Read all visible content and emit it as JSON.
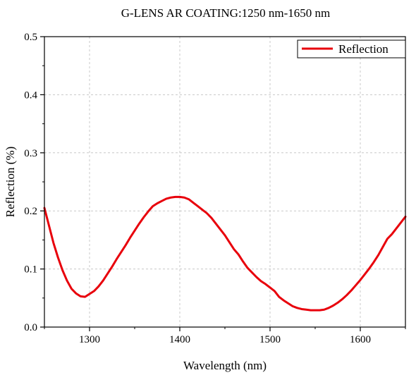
{
  "chart_data": {
    "type": "line",
    "title": "G-LENS AR COATING:1250 nm-1650 nm",
    "xlabel": "Wavelength (nm)",
    "ylabel": "Reflection (%)",
    "xlim": [
      1250,
      1650
    ],
    "ylim": [
      0.0,
      0.5
    ],
    "xticks": [
      1300,
      1400,
      1500,
      1600
    ],
    "xtick_labels": [
      "1300",
      "1400",
      "1500",
      "1600"
    ],
    "yticks": [
      0.0,
      0.1,
      0.2,
      0.3,
      0.4,
      0.5
    ],
    "ytick_labels": [
      "0.0",
      "0.1",
      "0.2",
      "0.3",
      "0.4",
      "0.5"
    ],
    "grid": true,
    "legend_position": "top-right",
    "series": [
      {
        "name": "Reflection",
        "color": "#e8000b",
        "x": [
          1250,
          1255,
          1260,
          1265,
          1270,
          1275,
          1280,
          1285,
          1290,
          1295,
          1300,
          1305,
          1310,
          1315,
          1320,
          1325,
          1330,
          1335,
          1340,
          1345,
          1350,
          1355,
          1360,
          1365,
          1370,
          1375,
          1380,
          1385,
          1390,
          1395,
          1400,
          1405,
          1410,
          1415,
          1420,
          1425,
          1430,
          1435,
          1440,
          1445,
          1450,
          1455,
          1460,
          1465,
          1470,
          1475,
          1480,
          1485,
          1490,
          1495,
          1500,
          1505,
          1510,
          1515,
          1520,
          1525,
          1530,
          1535,
          1540,
          1545,
          1550,
          1555,
          1560,
          1565,
          1570,
          1575,
          1580,
          1585,
          1590,
          1595,
          1600,
          1605,
          1610,
          1615,
          1620,
          1625,
          1630,
          1635,
          1640,
          1645,
          1650
        ],
        "y": [
          0.205,
          0.175,
          0.145,
          0.12,
          0.098,
          0.08,
          0.066,
          0.058,
          0.053,
          0.052,
          0.057,
          0.062,
          0.07,
          0.08,
          0.092,
          0.104,
          0.117,
          0.129,
          0.141,
          0.154,
          0.166,
          0.178,
          0.189,
          0.199,
          0.208,
          0.213,
          0.217,
          0.221,
          0.223,
          0.224,
          0.224,
          0.223,
          0.22,
          0.214,
          0.208,
          0.202,
          0.196,
          0.188,
          0.178,
          0.168,
          0.158,
          0.146,
          0.134,
          0.125,
          0.113,
          0.102,
          0.094,
          0.086,
          0.079,
          0.074,
          0.068,
          0.062,
          0.052,
          0.046,
          0.041,
          0.036,
          0.033,
          0.031,
          0.03,
          0.029,
          0.029,
          0.029,
          0.03,
          0.033,
          0.037,
          0.042,
          0.048,
          0.055,
          0.063,
          0.072,
          0.081,
          0.091,
          0.101,
          0.112,
          0.124,
          0.138,
          0.152,
          0.16,
          0.17,
          0.18,
          0.19
        ]
      }
    ]
  }
}
